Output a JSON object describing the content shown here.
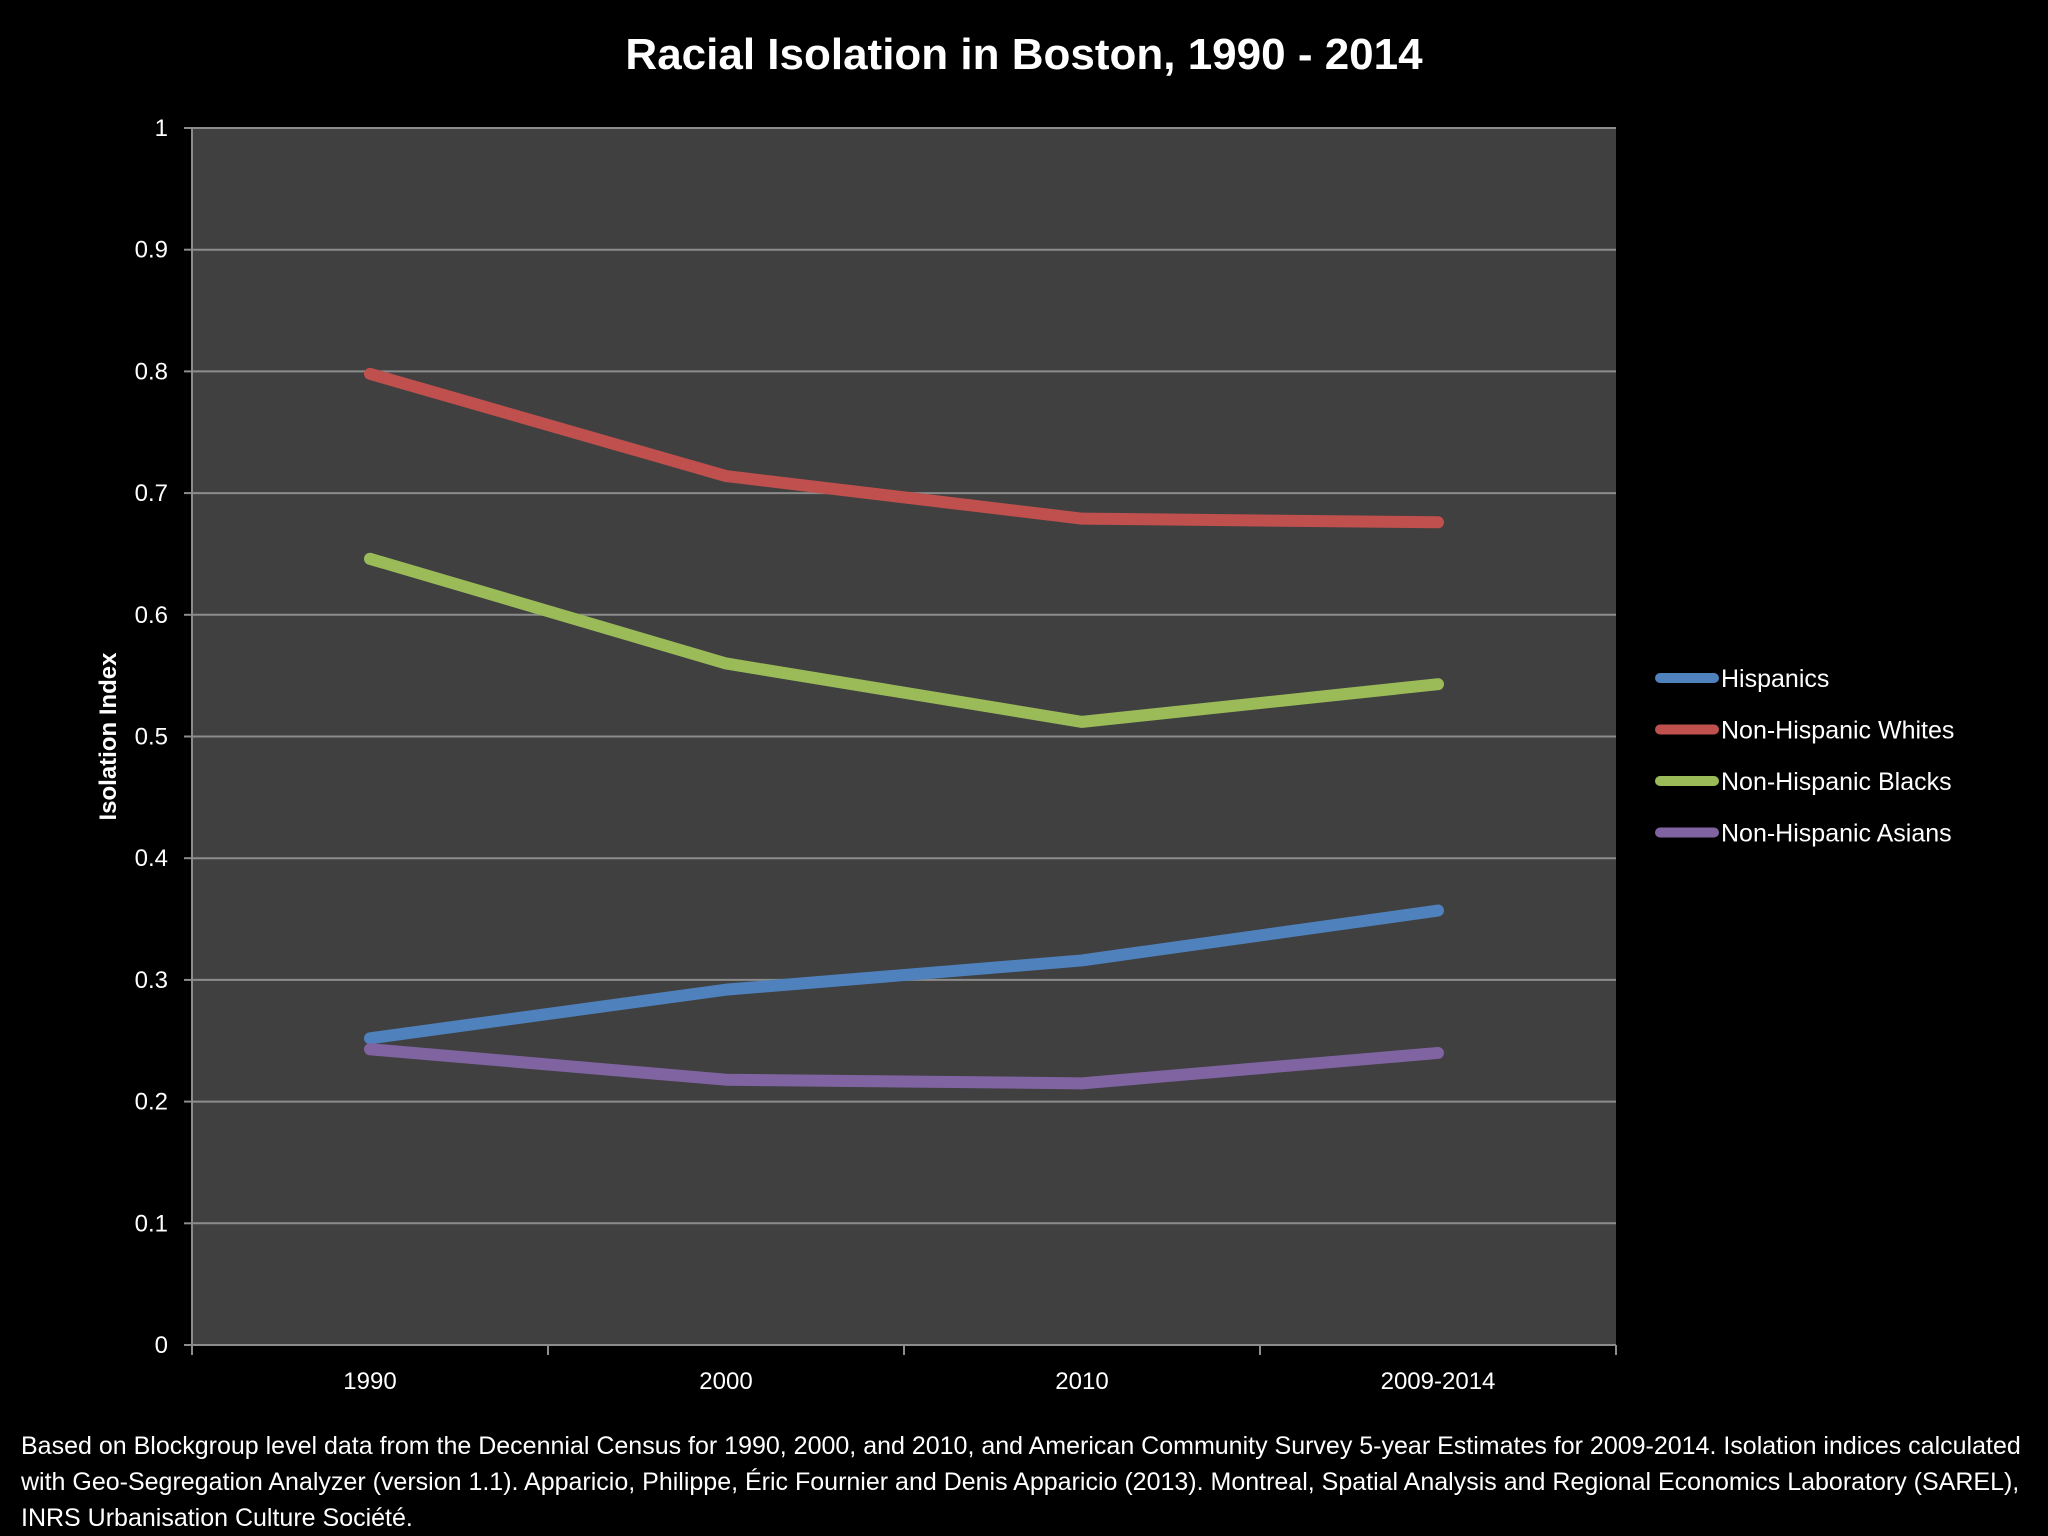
{
  "chart_data": {
    "type": "line",
    "title": "Racial Isolation in Boston, 1990 - 2014",
    "xlabel": "",
    "ylabel": "Isolation Index",
    "categories": [
      "1990",
      "2000",
      "2010",
      "2009-2014"
    ],
    "ylim": [
      0,
      1
    ],
    "yticks": [
      "0",
      "0.1",
      "0.2",
      "0.3",
      "0.4",
      "0.5",
      "0.6",
      "0.7",
      "0.8",
      "0.9",
      "1"
    ],
    "grid": true,
    "legend_position": "right",
    "plot_background": "#404040",
    "series": [
      {
        "name": "Hispanics",
        "color": "#4f81bd",
        "values": [
          0.252,
          0.292,
          0.316,
          0.357
        ]
      },
      {
        "name": "Non-Hispanic Whites",
        "color": "#c0504d",
        "values": [
          0.798,
          0.714,
          0.679,
          0.676
        ]
      },
      {
        "name": "Non-Hispanic Blacks",
        "color": "#9bbb59",
        "values": [
          0.646,
          0.56,
          0.512,
          0.543
        ]
      },
      {
        "name": "Non-Hispanic Asians",
        "color": "#8064a2",
        "values": [
          0.243,
          0.218,
          0.215,
          0.24
        ]
      }
    ]
  },
  "footnote": "Based on Blockgroup level data from the Decennial Census for 1990, 2000, and 2010, and American Community Survey 5-year Estimates for 2009-2014.  Isolation indices calculated with Geo-Segregation Analyzer (version 1.1).  Apparicio, Philippe, Éric Fournier and Denis Apparicio (2013).  Montreal, Spatial Analysis and Regional Economics Laboratory (SAREL), INRS Urbanisation Culture Société."
}
